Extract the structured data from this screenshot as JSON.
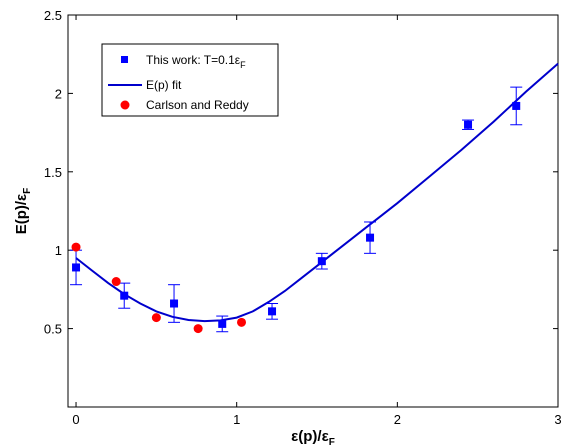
{
  "chart_data": {
    "type": "scatter",
    "xlabel": {
      "main": "ε(p)/ε",
      "sub": "F"
    },
    "ylabel": {
      "main": "E(p)/ε",
      "sub": "F"
    },
    "xlim": [
      -0.05,
      3.0
    ],
    "ylim": [
      0.0,
      2.5
    ],
    "xticks": [
      0,
      1,
      2,
      3
    ],
    "xtick_labels": [
      "0",
      "1",
      "2",
      "3"
    ],
    "yticks": [
      0.5,
      1.0,
      1.5,
      2.0,
      2.5
    ],
    "ytick_labels": [
      "0.5",
      "1",
      "1.5",
      "2",
      "2.5"
    ],
    "grid": false,
    "legend_position": "top-left",
    "legend": [
      {
        "label_main": "This work: T=0.1ε",
        "label_sub": "F",
        "marker": "square",
        "color": "#0000ff"
      },
      {
        "label_main": "E(p) fit",
        "label_sub": "",
        "marker": "line",
        "color": "#0000cc"
      },
      {
        "label_main": "Carlson and Reddy",
        "label_sub": "",
        "marker": "circle",
        "color": "#ff0000"
      }
    ],
    "series": [
      {
        "name": "This work: T=0.1εF",
        "kind": "scatter-errorbar",
        "marker": "square",
        "color": "#0000ff",
        "points": [
          {
            "x": 0.0,
            "y": 0.89,
            "err": 0.11
          },
          {
            "x": 0.3,
            "y": 0.71,
            "err": 0.08
          },
          {
            "x": 0.61,
            "y": 0.66,
            "err": 0.12
          },
          {
            "x": 0.91,
            "y": 0.53,
            "err": 0.05
          },
          {
            "x": 1.22,
            "y": 0.61,
            "err": 0.05
          },
          {
            "x": 1.53,
            "y": 0.93,
            "err": 0.05
          },
          {
            "x": 1.83,
            "y": 1.08,
            "err": 0.1
          },
          {
            "x": 2.44,
            "y": 1.8,
            "err": 0.03
          },
          {
            "x": 2.74,
            "y": 1.92,
            "err": 0.12
          }
        ]
      },
      {
        "name": "E(p) fit",
        "kind": "line",
        "color": "#0000cc",
        "points": [
          {
            "x": 0.0,
            "y": 0.95
          },
          {
            "x": 0.1,
            "y": 0.87
          },
          {
            "x": 0.2,
            "y": 0.79
          },
          {
            "x": 0.3,
            "y": 0.72
          },
          {
            "x": 0.4,
            "y": 0.66
          },
          {
            "x": 0.5,
            "y": 0.61
          },
          {
            "x": 0.6,
            "y": 0.575
          },
          {
            "x": 0.7,
            "y": 0.555
          },
          {
            "x": 0.8,
            "y": 0.548
          },
          {
            "x": 0.9,
            "y": 0.552
          },
          {
            "x": 1.0,
            "y": 0.57
          },
          {
            "x": 1.1,
            "y": 0.61
          },
          {
            "x": 1.2,
            "y": 0.67
          },
          {
            "x": 1.3,
            "y": 0.74
          },
          {
            "x": 1.4,
            "y": 0.82
          },
          {
            "x": 1.5,
            "y": 0.9
          },
          {
            "x": 1.6,
            "y": 0.98
          },
          {
            "x": 1.7,
            "y": 1.06
          },
          {
            "x": 1.8,
            "y": 1.14
          },
          {
            "x": 1.9,
            "y": 1.22
          },
          {
            "x": 2.0,
            "y": 1.3
          },
          {
            "x": 2.2,
            "y": 1.47
          },
          {
            "x": 2.4,
            "y": 1.64
          },
          {
            "x": 2.6,
            "y": 1.82
          },
          {
            "x": 2.8,
            "y": 2.01
          },
          {
            "x": 3.0,
            "y": 2.19
          }
        ]
      },
      {
        "name": "Carlson and Reddy",
        "kind": "scatter",
        "marker": "circle",
        "color": "#ff0000",
        "points": [
          {
            "x": 0.0,
            "y": 1.02
          },
          {
            "x": 0.25,
            "y": 0.8
          },
          {
            "x": 0.5,
            "y": 0.57
          },
          {
            "x": 0.76,
            "y": 0.5
          },
          {
            "x": 1.03,
            "y": 0.54
          }
        ]
      }
    ]
  }
}
